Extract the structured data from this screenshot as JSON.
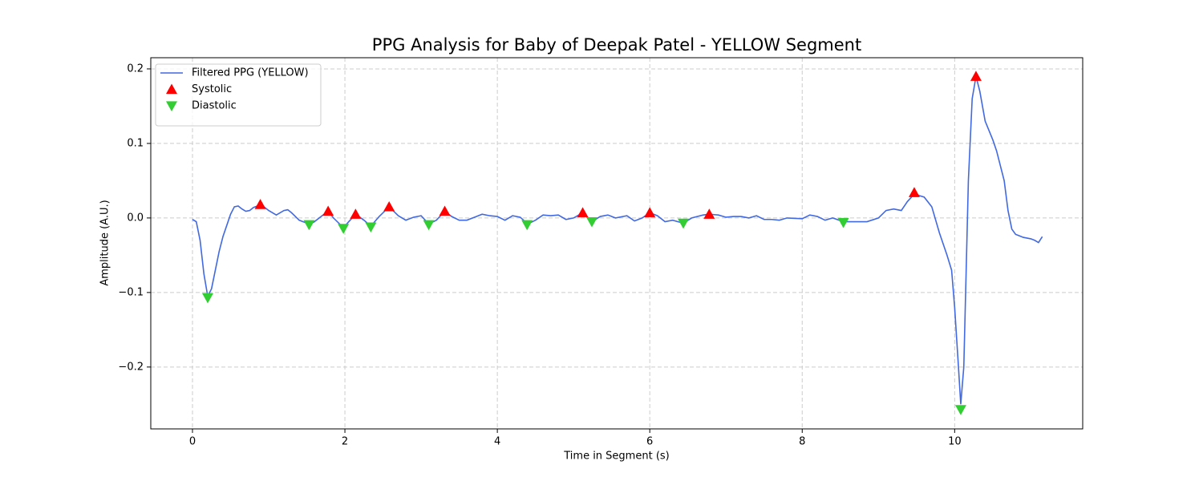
{
  "chart_data": {
    "type": "line",
    "title": "PPG Analysis for Baby of Deepak Patel - YELLOW Segment",
    "x_label": "Time in Segment (s)",
    "y_label": "Amplitude (A.U.)",
    "xlim": [
      -0.547,
      11.68
    ],
    "ylim": [
      -0.283,
      0.215
    ],
    "xticks": [
      0,
      2,
      4,
      6,
      8,
      10
    ],
    "yticks": [
      {
        "value": -0.2,
        "label": "−0.2"
      },
      {
        "value": -0.1,
        "label": "−0.1"
      },
      {
        "value": 0,
        "label": "0.0"
      },
      0.1,
      0.2
    ],
    "grid": true,
    "legend": "upper left",
    "series": [
      {
        "name": "Filtered PPG (YELLOW)",
        "color": "#4169e1",
        "style": "line",
        "x": [
          0,
          0.05,
          0.1,
          0.15,
          0.2,
          0.25,
          0.3,
          0.35,
          0.4,
          0.45,
          0.5,
          0.55,
          0.6,
          0.65,
          0.7,
          0.75,
          0.8,
          0.9,
          1.0,
          1.1,
          1.2,
          1.25,
          1.3,
          1.4,
          1.5,
          1.55,
          1.6,
          1.7,
          1.78,
          1.85,
          1.98,
          2.05,
          2.14,
          2.25,
          2.34,
          2.45,
          2.58,
          2.7,
          2.8,
          2.9,
          3.0,
          3.1,
          3.2,
          3.31,
          3.4,
          3.5,
          3.6,
          3.7,
          3.8,
          3.9,
          4.0,
          4.1,
          4.2,
          4.3,
          4.4,
          4.5,
          4.6,
          4.7,
          4.8,
          4.9,
          5.0,
          5.12,
          5.24,
          5.35,
          5.45,
          5.55,
          5.7,
          5.8,
          5.9,
          6.0,
          6.1,
          6.2,
          6.3,
          6.44,
          6.55,
          6.7,
          6.78,
          6.9,
          7.0,
          7.1,
          7.2,
          7.3,
          7.4,
          7.5,
          7.6,
          7.7,
          7.8,
          8.0,
          8.1,
          8.2,
          8.3,
          8.4,
          8.54,
          8.7,
          8.85,
          9.0,
          9.1,
          9.2,
          9.3,
          9.38,
          9.47,
          9.6,
          9.7,
          9.8,
          9.9,
          9.96,
          10.0,
          10.05,
          10.08,
          10.12,
          10.18,
          10.23,
          10.28,
          10.33,
          10.4,
          10.5,
          10.55,
          10.65,
          10.7,
          10.75,
          10.8,
          10.9,
          11.0,
          11.05,
          11.1,
          11.15
        ],
        "values": [
          -0.002,
          -0.005,
          -0.03,
          -0.075,
          -0.105,
          -0.095,
          -0.07,
          -0.045,
          -0.025,
          -0.01,
          0.005,
          0.015,
          0.016,
          0.012,
          0.009,
          0.01,
          0.014,
          0.018,
          0.01,
          0.004,
          0.01,
          0.011,
          0.007,
          -0.003,
          -0.007,
          -0.008,
          -0.005,
          0.003,
          0.009,
          0.0,
          -0.013,
          -0.005,
          0.005,
          -0.003,
          -0.011,
          0.002,
          0.015,
          0.003,
          -0.003,
          0.001,
          0.003,
          -0.008,
          -0.003,
          0.009,
          0.002,
          -0.003,
          -0.003,
          0.001,
          0.005,
          0.003,
          0.002,
          -0.003,
          0.003,
          0.001,
          -0.008,
          -0.003,
          0.004,
          0.003,
          0.004,
          -0.002,
          0.0,
          0.007,
          -0.005,
          0.002,
          0.004,
          0.0,
          0.003,
          -0.004,
          0.0,
          0.007,
          0.003,
          -0.005,
          -0.003,
          -0.007,
          0.0,
          0.004,
          0.005,
          0.004,
          0.001,
          0.002,
          0.002,
          0.0,
          0.003,
          -0.002,
          -0.002,
          -0.003,
          0.0,
          -0.001,
          0.004,
          0.002,
          -0.003,
          0.0,
          -0.005,
          -0.005,
          -0.005,
          0.0,
          0.01,
          0.012,
          0.01,
          0.022,
          0.032,
          0.028,
          0.015,
          -0.02,
          -0.05,
          -0.07,
          -0.12,
          -0.2,
          -0.25,
          -0.2,
          0.05,
          0.16,
          0.19,
          0.17,
          0.13,
          0.105,
          0.09,
          0.05,
          0.01,
          -0.015,
          -0.022,
          -0.026,
          -0.028,
          -0.03,
          -0.033,
          -0.025
        ]
      },
      {
        "name": "Systolic",
        "color": "#ff0000",
        "style": "triangle-up",
        "x": [
          0.89,
          1.78,
          2.14,
          2.58,
          3.31,
          5.12,
          6.0,
          6.78,
          9.47,
          10.28
        ],
        "values": [
          0.018,
          0.009,
          0.005,
          0.015,
          0.009,
          0.007,
          0.007,
          0.005,
          0.034,
          0.19
        ]
      },
      {
        "name": "Diastolic",
        "color": "#32cd32",
        "style": "triangle-down",
        "x": [
          0.2,
          1.53,
          1.98,
          2.34,
          3.1,
          4.39,
          5.24,
          6.44,
          8.54,
          10.08
        ],
        "values": [
          -0.107,
          -0.009,
          -0.014,
          -0.012,
          -0.009,
          -0.009,
          -0.005,
          -0.007,
          -0.006,
          -0.257
        ]
      }
    ]
  }
}
